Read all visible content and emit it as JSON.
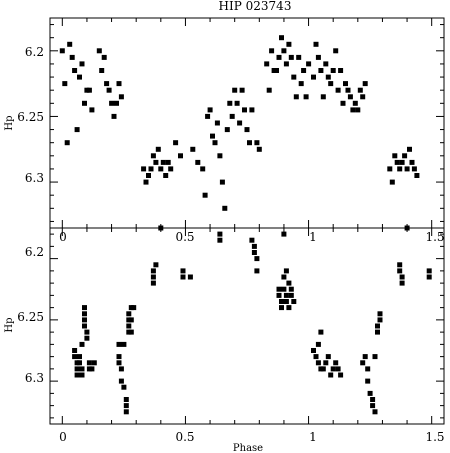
{
  "chart_data": [
    {
      "type": "scatter",
      "title": "HIP 023743",
      "ylabel": "Hp",
      "xlabel": "",
      "xlim": [
        -0.05,
        1.55
      ],
      "ylim": [
        6.335,
        6.175
      ],
      "y_inverted": true,
      "grid": false,
      "xticks": [
        "0",
        "0.5",
        "1",
        "1.5"
      ],
      "yticks": [
        "6.2",
        "6.25",
        "6.3"
      ],
      "marker_color": "#000000",
      "points": [
        [
          0.0,
          6.2
        ],
        [
          0.01,
          6.225
        ],
        [
          0.02,
          6.27
        ],
        [
          0.03,
          6.195
        ],
        [
          0.04,
          6.205
        ],
        [
          0.05,
          6.215
        ],
        [
          0.06,
          6.26
        ],
        [
          0.07,
          6.22
        ],
        [
          0.08,
          6.21
        ],
        [
          0.09,
          6.24
        ],
        [
          0.1,
          6.23
        ],
        [
          0.11,
          6.23
        ],
        [
          0.12,
          6.245
        ],
        [
          0.15,
          6.2
        ],
        [
          0.16,
          6.215
        ],
        [
          0.17,
          6.205
        ],
        [
          0.18,
          6.225
        ],
        [
          0.19,
          6.23
        ],
        [
          0.2,
          6.24
        ],
        [
          0.21,
          6.25
        ],
        [
          0.22,
          6.24
        ],
        [
          0.23,
          6.225
        ],
        [
          0.24,
          6.235
        ],
        [
          0.33,
          6.29
        ],
        [
          0.34,
          6.3
        ],
        [
          0.35,
          6.295
        ],
        [
          0.36,
          6.29
        ],
        [
          0.37,
          6.28
        ],
        [
          0.38,
          6.285
        ],
        [
          0.39,
          6.275
        ],
        [
          0.4,
          6.29
        ],
        [
          0.41,
          6.285
        ],
        [
          0.42,
          6.295
        ],
        [
          0.43,
          6.285
        ],
        [
          0.44,
          6.29
        ],
        [
          0.46,
          6.27
        ],
        [
          0.48,
          6.28
        ],
        [
          0.53,
          6.275
        ],
        [
          0.55,
          6.285
        ],
        [
          0.57,
          6.29
        ],
        [
          0.58,
          6.31
        ],
        [
          0.59,
          6.25
        ],
        [
          0.6,
          6.245
        ],
        [
          0.61,
          6.265
        ],
        [
          0.62,
          6.27
        ],
        [
          0.63,
          6.255
        ],
        [
          0.64,
          6.28
        ],
        [
          0.65,
          6.3
        ],
        [
          0.66,
          6.32
        ],
        [
          0.67,
          6.26
        ],
        [
          0.68,
          6.24
        ],
        [
          0.69,
          6.25
        ],
        [
          0.7,
          6.23
        ],
        [
          0.71,
          6.24
        ],
        [
          0.72,
          6.255
        ],
        [
          0.73,
          6.23
        ],
        [
          0.74,
          6.245
        ],
        [
          0.75,
          6.26
        ],
        [
          0.76,
          6.27
        ],
        [
          0.77,
          6.245
        ],
        [
          0.79,
          6.27
        ],
        [
          0.8,
          6.275
        ],
        [
          0.83,
          6.21
        ],
        [
          0.84,
          6.23
        ],
        [
          0.85,
          6.2
        ],
        [
          0.86,
          6.215
        ],
        [
          0.87,
          6.215
        ],
        [
          0.88,
          6.205
        ],
        [
          0.89,
          6.19
        ],
        [
          0.9,
          6.2
        ],
        [
          0.91,
          6.21
        ],
        [
          0.92,
          6.195
        ],
        [
          0.93,
          6.205
        ],
        [
          0.94,
          6.22
        ],
        [
          0.95,
          6.235
        ],
        [
          0.96,
          6.205
        ],
        [
          0.97,
          6.225
        ],
        [
          0.98,
          6.215
        ],
        [
          0.99,
          6.235
        ],
        [
          1.0,
          6.21
        ],
        [
          1.02,
          6.22
        ],
        [
          1.03,
          6.195
        ],
        [
          1.04,
          6.205
        ],
        [
          1.05,
          6.215
        ],
        [
          1.06,
          6.235
        ],
        [
          1.07,
          6.21
        ],
        [
          1.08,
          6.22
        ],
        [
          1.09,
          6.225
        ],
        [
          1.1,
          6.215
        ],
        [
          1.11,
          6.2
        ],
        [
          1.12,
          6.23
        ],
        [
          1.13,
          6.215
        ],
        [
          1.14,
          6.24
        ],
        [
          1.15,
          6.225
        ],
        [
          1.16,
          6.23
        ],
        [
          1.17,
          6.235
        ],
        [
          1.18,
          6.245
        ],
        [
          1.19,
          6.24
        ],
        [
          1.2,
          6.245
        ],
        [
          1.21,
          6.23
        ],
        [
          1.22,
          6.235
        ],
        [
          1.23,
          6.225
        ],
        [
          1.33,
          6.29
        ],
        [
          1.34,
          6.3
        ],
        [
          1.35,
          6.28
        ],
        [
          1.36,
          6.285
        ],
        [
          1.37,
          6.29
        ],
        [
          1.38,
          6.285
        ],
        [
          1.39,
          6.28
        ],
        [
          1.4,
          6.29
        ],
        [
          1.41,
          6.275
        ],
        [
          1.42,
          6.285
        ],
        [
          1.43,
          6.29
        ],
        [
          1.44,
          6.295
        ]
      ]
    },
    {
      "type": "scatter",
      "ylabel": "Hp",
      "xlabel": "Phase",
      "xlim": [
        -0.05,
        1.55
      ],
      "ylim": [
        6.335,
        6.175
      ],
      "y_inverted": true,
      "grid": false,
      "xticks": [
        "0",
        "0.5",
        "1",
        "1.5"
      ],
      "yticks": [
        "6.2",
        "6.25",
        "6.3"
      ],
      "marker_color": "#000000",
      "points": [
        [
          0.05,
          6.275
        ],
        [
          0.05,
          6.28
        ],
        [
          0.06,
          6.285
        ],
        [
          0.06,
          6.29
        ],
        [
          0.06,
          6.295
        ],
        [
          0.07,
          6.28
        ],
        [
          0.07,
          6.285
        ],
        [
          0.08,
          6.29
        ],
        [
          0.08,
          6.295
        ],
        [
          0.08,
          6.27
        ],
        [
          0.09,
          6.24
        ],
        [
          0.09,
          6.245
        ],
        [
          0.09,
          6.25
        ],
        [
          0.09,
          6.255
        ],
        [
          0.1,
          6.26
        ],
        [
          0.1,
          6.265
        ],
        [
          0.11,
          6.285
        ],
        [
          0.11,
          6.29
        ],
        [
          0.12,
          6.29
        ],
        [
          0.13,
          6.285
        ],
        [
          0.23,
          6.27
        ],
        [
          0.23,
          6.28
        ],
        [
          0.23,
          6.285
        ],
        [
          0.24,
          6.29
        ],
        [
          0.24,
          6.3
        ],
        [
          0.25,
          6.305
        ],
        [
          0.25,
          6.27
        ],
        [
          0.26,
          6.315
        ],
        [
          0.26,
          6.32
        ],
        [
          0.26,
          6.325
        ],
        [
          0.27,
          6.245
        ],
        [
          0.27,
          6.25
        ],
        [
          0.27,
          6.255
        ],
        [
          0.27,
          6.26
        ],
        [
          0.28,
          6.24
        ],
        [
          0.28,
          6.25
        ],
        [
          0.28,
          6.26
        ],
        [
          0.29,
          6.24
        ],
        [
          0.37,
          6.21
        ],
        [
          0.37,
          6.215
        ],
        [
          0.37,
          6.22
        ],
        [
          0.38,
          6.205
        ],
        [
          0.4,
          6.175
        ],
        [
          0.49,
          6.21
        ],
        [
          0.49,
          6.215
        ],
        [
          0.52,
          6.215
        ],
        [
          0.64,
          6.18
        ],
        [
          0.64,
          6.185
        ],
        [
          0.77,
          6.185
        ],
        [
          0.78,
          6.19
        ],
        [
          0.78,
          6.195
        ],
        [
          0.79,
          6.2
        ],
        [
          0.79,
          6.21
        ],
        [
          0.88,
          6.225
        ],
        [
          0.88,
          6.23
        ],
        [
          0.89,
          6.235
        ],
        [
          0.89,
          6.24
        ],
        [
          0.9,
          6.225
        ],
        [
          0.9,
          6.215
        ],
        [
          0.91,
          6.23
        ],
        [
          0.91,
          6.235
        ],
        [
          0.92,
          6.22
        ],
        [
          0.92,
          6.24
        ],
        [
          0.93,
          6.23
        ],
        [
          0.93,
          6.225
        ],
        [
          0.9,
          6.18
        ],
        [
          0.91,
          6.21
        ],
        [
          0.94,
          6.235
        ],
        [
          1.02,
          6.275
        ],
        [
          1.03,
          6.28
        ],
        [
          1.04,
          6.285
        ],
        [
          1.05,
          6.29
        ],
        [
          1.06,
          6.29
        ],
        [
          1.07,
          6.285
        ],
        [
          1.08,
          6.28
        ],
        [
          1.09,
          6.295
        ],
        [
          1.1,
          6.29
        ],
        [
          1.11,
          6.285
        ],
        [
          1.12,
          6.29
        ],
        [
          1.13,
          6.295
        ],
        [
          1.05,
          6.26
        ],
        [
          1.04,
          6.27
        ],
        [
          1.22,
          6.285
        ],
        [
          1.23,
          6.28
        ],
        [
          1.24,
          6.29
        ],
        [
          1.24,
          6.3
        ],
        [
          1.25,
          6.31
        ],
        [
          1.26,
          6.315
        ],
        [
          1.26,
          6.32
        ],
        [
          1.27,
          6.325
        ],
        [
          1.28,
          6.26
        ],
        [
          1.28,
          6.255
        ],
        [
          1.29,
          6.245
        ],
        [
          1.29,
          6.25
        ],
        [
          1.27,
          6.28
        ],
        [
          1.37,
          6.205
        ],
        [
          1.37,
          6.21
        ],
        [
          1.38,
          6.215
        ],
        [
          1.38,
          6.22
        ],
        [
          1.4,
          6.175
        ],
        [
          1.49,
          6.21
        ],
        [
          1.49,
          6.215
        ]
      ]
    }
  ]
}
